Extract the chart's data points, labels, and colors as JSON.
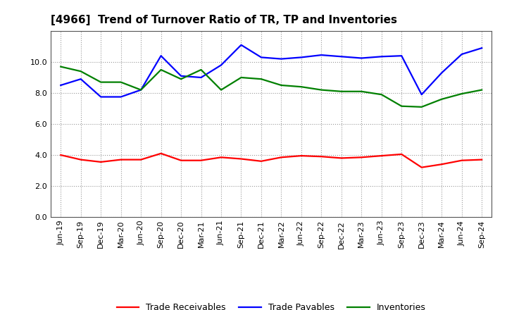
{
  "title": "[4966]  Trend of Turnover Ratio of TR, TP and Inventories",
  "labels": [
    "Jun-19",
    "Sep-19",
    "Dec-19",
    "Mar-20",
    "Jun-20",
    "Sep-20",
    "Dec-20",
    "Mar-21",
    "Jun-21",
    "Sep-21",
    "Dec-21",
    "Mar-22",
    "Jun-22",
    "Sep-22",
    "Dec-22",
    "Mar-23",
    "Jun-23",
    "Sep-23",
    "Dec-23",
    "Mar-24",
    "Jun-24",
    "Sep-24"
  ],
  "trade_receivables": [
    4.0,
    3.7,
    3.55,
    3.7,
    3.7,
    4.1,
    3.65,
    3.65,
    3.85,
    3.75,
    3.6,
    3.85,
    3.95,
    3.9,
    3.8,
    3.85,
    3.95,
    4.05,
    3.2,
    3.4,
    3.65,
    3.7
  ],
  "trade_payables": [
    8.5,
    8.9,
    7.75,
    7.75,
    8.2,
    10.4,
    9.1,
    9.0,
    9.8,
    11.1,
    10.3,
    10.2,
    10.3,
    10.45,
    10.35,
    10.25,
    10.35,
    10.4,
    7.9,
    9.3,
    10.5,
    10.9
  ],
  "inventories": [
    9.7,
    9.4,
    8.7,
    8.7,
    8.2,
    9.5,
    8.9,
    9.5,
    8.2,
    9.0,
    8.9,
    8.5,
    8.4,
    8.2,
    8.1,
    8.1,
    7.9,
    7.15,
    7.1,
    7.6,
    7.95,
    8.2
  ],
  "ylim": [
    0,
    12
  ],
  "yticks": [
    0.0,
    2.0,
    4.0,
    6.0,
    8.0,
    10.0
  ],
  "line_colors": {
    "trade_receivables": "#ff0000",
    "trade_payables": "#0000ff",
    "inventories": "#008000"
  },
  "legend_labels": [
    "Trade Receivables",
    "Trade Payables",
    "Inventories"
  ],
  "background_color": "#ffffff",
  "grid_color": "#999999",
  "title_fontsize": 11,
  "tick_fontsize": 8,
  "legend_fontsize": 9
}
